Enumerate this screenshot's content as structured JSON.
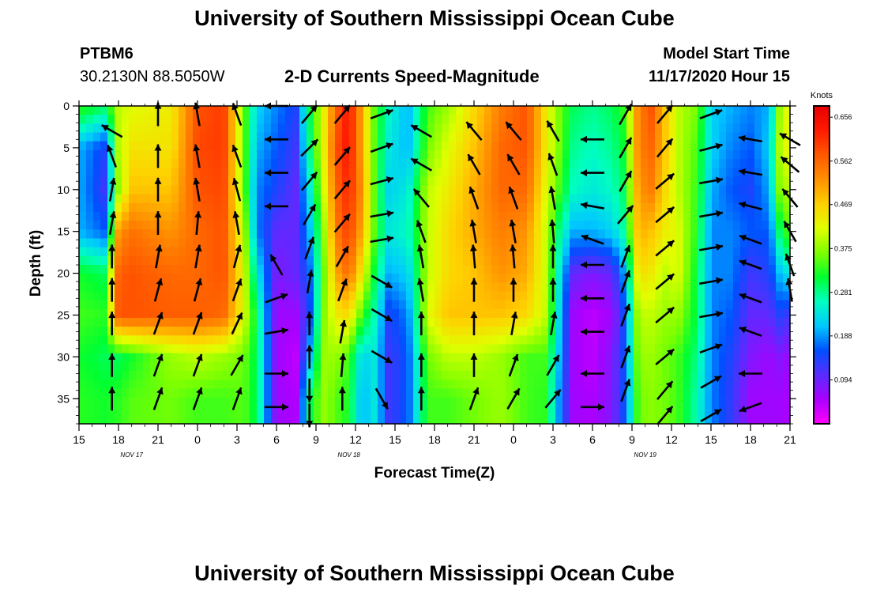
{
  "header": {
    "title": "University of Southern Mississippi Ocean Cube",
    "station_id": "PTBM6",
    "station_coords": "30.2130N 88.5050W",
    "variable_title": "2-D Currents Speed-Magnitude",
    "model_start_label": "Model Start Time",
    "model_start_value": "11/17/2020 Hour 15"
  },
  "footer": {
    "title": "University of Southern Mississippi Ocean Cube"
  },
  "chart_data": {
    "type": "heatmap",
    "title": "2-D Currents Speed-Magnitude",
    "xlabel": "Forecast Time(Z)",
    "ylabel": "Depth (ft)",
    "x_tick_labels": [
      "15",
      "18",
      "21",
      "0",
      "3",
      "6",
      "9",
      "12",
      "15",
      "18",
      "21",
      "0",
      "3",
      "6",
      "9",
      "12",
      "15",
      "18",
      "21"
    ],
    "x_tick_hours": [
      0,
      3,
      6,
      9,
      12,
      15,
      18,
      21,
      24,
      27,
      30,
      33,
      36,
      39,
      42,
      45,
      48,
      51,
      54
    ],
    "x_range_hours": [
      0,
      54
    ],
    "date_labels": [
      {
        "hour": 4,
        "label": "NOV 17"
      },
      {
        "hour": 20.5,
        "label": "NOV 18"
      },
      {
        "hour": 43,
        "label": "NOV 19"
      }
    ],
    "y_ticks": [
      0,
      5,
      10,
      15,
      20,
      25,
      30,
      35
    ],
    "y_range": [
      0,
      38
    ],
    "y_inverted": true,
    "colorbar": {
      "units": "Knots",
      "range": [
        0.0,
        0.68
      ],
      "labels": [
        "0.656",
        "0.562",
        "0.469",
        "0.375",
        "0.281",
        "0.188",
        "0.094"
      ],
      "label_values": [
        0.656,
        0.562,
        0.469,
        0.375,
        0.281,
        0.188,
        0.094
      ],
      "colors": [
        "#ff00ff",
        "#aa00ff",
        "#5a2cff",
        "#0050ff",
        "#00c8ff",
        "#00ffc0",
        "#00ff30",
        "#80ff00",
        "#e0ff00",
        "#ffd000",
        "#ff9000",
        "#ff5800",
        "#ff1a00",
        "#e80000"
      ]
    },
    "grid": false,
    "speed_field": {
      "description": "current speed (knots) sampled at forecast hour (rows) x depth ft (columns)",
      "depths_ft": [
        0,
        5,
        10,
        15,
        20,
        25,
        30,
        35,
        38
      ],
      "profiles": [
        {
          "hour": 0,
          "speeds": [
            0.34,
            0.2,
            0.2,
            0.2,
            0.32,
            0.34,
            0.32,
            0.33,
            0.33
          ]
        },
        {
          "hour": 2,
          "speeds": [
            0.3,
            0.14,
            0.12,
            0.16,
            0.3,
            0.33,
            0.3,
            0.32,
            0.32
          ]
        },
        {
          "hour": 3,
          "speeds": [
            0.4,
            0.4,
            0.38,
            0.52,
            0.57,
            0.58,
            0.3,
            0.33,
            0.33
          ]
        },
        {
          "hour": 4,
          "speeds": [
            0.42,
            0.45,
            0.48,
            0.55,
            0.58,
            0.58,
            0.32,
            0.35,
            0.35
          ]
        },
        {
          "hour": 7,
          "speeds": [
            0.44,
            0.45,
            0.48,
            0.52,
            0.56,
            0.57,
            0.38,
            0.36,
            0.36
          ]
        },
        {
          "hour": 9,
          "speeds": [
            0.58,
            0.59,
            0.58,
            0.56,
            0.56,
            0.57,
            0.4,
            0.34,
            0.34
          ]
        },
        {
          "hour": 11,
          "speeds": [
            0.6,
            0.6,
            0.59,
            0.58,
            0.58,
            0.56,
            0.38,
            0.34,
            0.34
          ]
        },
        {
          "hour": 12.5,
          "speeds": [
            0.36,
            0.36,
            0.36,
            0.4,
            0.42,
            0.42,
            0.36,
            0.35,
            0.35
          ]
        },
        {
          "hour": 13.5,
          "speeds": [
            0.22,
            0.2,
            0.18,
            0.18,
            0.24,
            0.3,
            0.3,
            0.3,
            0.3
          ]
        },
        {
          "hour": 15,
          "speeds": [
            0.18,
            0.16,
            0.14,
            0.1,
            0.08,
            0.06,
            0.06,
            0.06,
            0.06
          ]
        },
        {
          "hour": 16.5,
          "speeds": [
            0.14,
            0.12,
            0.1,
            0.1,
            0.1,
            0.06,
            0.04,
            0.05,
            0.05
          ]
        },
        {
          "hour": 17.5,
          "speeds": [
            0.3,
            0.28,
            0.24,
            0.2,
            0.16,
            0.14,
            0.2,
            0.3,
            0.3
          ]
        },
        {
          "hour": 18.5,
          "speeds": [
            0.42,
            0.42,
            0.4,
            0.36,
            0.34,
            0.36,
            0.38,
            0.38,
            0.38
          ]
        },
        {
          "hour": 19.5,
          "speeds": [
            0.56,
            0.58,
            0.56,
            0.54,
            0.5,
            0.44,
            0.38,
            0.35,
            0.35
          ]
        },
        {
          "hour": 20.5,
          "speeds": [
            0.64,
            0.64,
            0.62,
            0.6,
            0.56,
            0.46,
            0.34,
            0.32,
            0.32
          ]
        },
        {
          "hour": 21.5,
          "speeds": [
            0.5,
            0.5,
            0.52,
            0.5,
            0.44,
            0.34,
            0.22,
            0.2,
            0.2
          ]
        },
        {
          "hour": 22.5,
          "speeds": [
            0.34,
            0.34,
            0.34,
            0.34,
            0.3,
            0.26,
            0.24,
            0.24,
            0.24
          ]
        },
        {
          "hour": 23.5,
          "speeds": [
            0.26,
            0.24,
            0.22,
            0.24,
            0.2,
            0.14,
            0.12,
            0.12,
            0.12
          ]
        },
        {
          "hour": 25,
          "speeds": [
            0.2,
            0.2,
            0.24,
            0.26,
            0.22,
            0.18,
            0.16,
            0.16,
            0.16
          ]
        },
        {
          "hour": 26.5,
          "speeds": [
            0.34,
            0.36,
            0.4,
            0.4,
            0.4,
            0.42,
            0.36,
            0.34,
            0.34
          ]
        },
        {
          "hour": 28,
          "speeds": [
            0.38,
            0.42,
            0.44,
            0.46,
            0.46,
            0.48,
            0.4,
            0.34,
            0.34
          ]
        },
        {
          "hour": 30,
          "speeds": [
            0.46,
            0.48,
            0.5,
            0.5,
            0.48,
            0.48,
            0.4,
            0.36,
            0.36
          ]
        },
        {
          "hour": 32,
          "speeds": [
            0.54,
            0.56,
            0.56,
            0.54,
            0.52,
            0.48,
            0.38,
            0.38,
            0.38
          ]
        },
        {
          "hour": 34,
          "speeds": [
            0.58,
            0.58,
            0.56,
            0.52,
            0.5,
            0.46,
            0.34,
            0.34,
            0.34
          ]
        },
        {
          "hour": 35.5,
          "speeds": [
            0.44,
            0.44,
            0.42,
            0.4,
            0.4,
            0.4,
            0.34,
            0.33,
            0.33
          ]
        },
        {
          "hour": 36.5,
          "speeds": [
            0.36,
            0.36,
            0.34,
            0.28,
            0.24,
            0.22,
            0.2,
            0.18,
            0.18
          ]
        },
        {
          "hour": 37.5,
          "speeds": [
            0.3,
            0.28,
            0.26,
            0.2,
            0.1,
            0.06,
            0.06,
            0.06,
            0.06
          ]
        },
        {
          "hour": 39,
          "speeds": [
            0.28,
            0.26,
            0.24,
            0.2,
            0.08,
            0.04,
            0.04,
            0.05,
            0.05
          ]
        },
        {
          "hour": 40.5,
          "speeds": [
            0.3,
            0.28,
            0.26,
            0.22,
            0.1,
            0.06,
            0.08,
            0.08,
            0.08
          ]
        },
        {
          "hour": 41.5,
          "speeds": [
            0.34,
            0.32,
            0.3,
            0.28,
            0.2,
            0.16,
            0.16,
            0.16,
            0.16
          ]
        },
        {
          "hour": 42.5,
          "speeds": [
            0.54,
            0.54,
            0.52,
            0.5,
            0.46,
            0.4,
            0.38,
            0.36,
            0.36
          ]
        },
        {
          "hour": 43.5,
          "speeds": [
            0.58,
            0.56,
            0.54,
            0.48,
            0.44,
            0.4,
            0.38,
            0.37,
            0.37
          ]
        },
        {
          "hour": 44.5,
          "speeds": [
            0.48,
            0.48,
            0.46,
            0.44,
            0.4,
            0.38,
            0.36,
            0.36,
            0.36
          ]
        },
        {
          "hour": 45.5,
          "speeds": [
            0.4,
            0.4,
            0.4,
            0.42,
            0.42,
            0.38,
            0.34,
            0.34,
            0.34
          ]
        },
        {
          "hour": 47,
          "speeds": [
            0.36,
            0.34,
            0.33,
            0.32,
            0.3,
            0.3,
            0.28,
            0.26,
            0.26
          ]
        },
        {
          "hour": 48,
          "speeds": [
            0.22,
            0.22,
            0.2,
            0.18,
            0.18,
            0.18,
            0.18,
            0.18,
            0.18
          ]
        },
        {
          "hour": 49.5,
          "speeds": [
            0.2,
            0.18,
            0.16,
            0.18,
            0.18,
            0.16,
            0.14,
            0.13,
            0.13
          ]
        },
        {
          "hour": 51,
          "speeds": [
            0.18,
            0.16,
            0.14,
            0.16,
            0.12,
            0.1,
            0.08,
            0.06,
            0.06
          ]
        },
        {
          "hour": 52.5,
          "speeds": [
            0.2,
            0.22,
            0.2,
            0.16,
            0.14,
            0.1,
            0.06,
            0.06,
            0.06
          ]
        },
        {
          "hour": 53,
          "speeds": [
            0.36,
            0.38,
            0.36,
            0.28,
            0.2,
            0.14,
            0.08,
            0.06,
            0.06
          ]
        },
        {
          "hour": 54,
          "speeds": [
            0.44,
            0.44,
            0.4,
            0.36,
            0.24,
            0.12,
            0.06,
            0.05,
            0.05
          ]
        }
      ]
    },
    "vectors": {
      "description": "current direction arrows; dir in degrees clockwise from up (screen), hour/depth in data units",
      "columns": [
        {
          "hour": 2.5,
          "depths": [
            3,
            6,
            10,
            14,
            18,
            22,
            26,
            31,
            35
          ],
          "dirs": [
            300,
            340,
            10,
            10,
            0,
            0,
            0,
            0,
            0
          ]
        },
        {
          "hour": 6,
          "depths": [
            1,
            6,
            10,
            14,
            18,
            22,
            26,
            31,
            35
          ],
          "dirs": [
            0,
            0,
            0,
            0,
            10,
            15,
            20,
            20,
            20
          ]
        },
        {
          "hour": 9,
          "depths": [
            1,
            6,
            10,
            14,
            18,
            22,
            26,
            31,
            35
          ],
          "dirs": [
            350,
            350,
            350,
            5,
            10,
            15,
            20,
            20,
            20
          ]
        },
        {
          "hour": 12,
          "depths": [
            1,
            6,
            10,
            14,
            18,
            22,
            26,
            31,
            35
          ],
          "dirs": [
            340,
            340,
            345,
            350,
            15,
            20,
            25,
            30,
            20
          ]
        },
        {
          "hour": 15,
          "depths": [
            0,
            4,
            8,
            12,
            19,
            23,
            27,
            32,
            36
          ],
          "dirs": [
            270,
            270,
            270,
            270,
            330,
            70,
            80,
            90,
            90
          ]
        },
        {
          "hour": 17.5,
          "depths": [
            1,
            5,
            9,
            13,
            17,
            21,
            26,
            30,
            34,
            37
          ],
          "dirs": [
            40,
            45,
            40,
            30,
            20,
            10,
            0,
            0,
            180,
            180
          ]
        },
        {
          "hour": 20,
          "depths": [
            1,
            6,
            10,
            14,
            18,
            22,
            27,
            31,
            35
          ],
          "dirs": [
            40,
            40,
            40,
            40,
            30,
            20,
            10,
            5,
            0
          ]
        },
        {
          "hour": 23,
          "depths": [
            1,
            5,
            9,
            13,
            16,
            21,
            25,
            30,
            35
          ],
          "dirs": [
            70,
            70,
            75,
            80,
            80,
            120,
            120,
            120,
            150
          ]
        },
        {
          "hour": 26,
          "depths": [
            3,
            7,
            11,
            15,
            18,
            22,
            26,
            31,
            35
          ],
          "dirs": [
            300,
            300,
            320,
            340,
            350,
            350,
            0,
            0,
            0
          ]
        },
        {
          "hour": 30,
          "depths": [
            3,
            7,
            11,
            15,
            18,
            22,
            26,
            31,
            35
          ],
          "dirs": [
            320,
            330,
            340,
            350,
            355,
            0,
            0,
            0,
            20
          ]
        },
        {
          "hour": 33,
          "depths": [
            3,
            7,
            11,
            15,
            18,
            22,
            26,
            31,
            35
          ],
          "dirs": [
            320,
            330,
            340,
            350,
            355,
            0,
            10,
            20,
            30
          ]
        },
        {
          "hour": 36,
          "depths": [
            3,
            7,
            11,
            15,
            18,
            22,
            26,
            31,
            35
          ],
          "dirs": [
            330,
            340,
            350,
            355,
            0,
            0,
            10,
            30,
            40
          ]
        },
        {
          "hour": 39,
          "depths": [
            4,
            8,
            12,
            16,
            19,
            23,
            27,
            32,
            36
          ],
          "dirs": [
            270,
            270,
            280,
            290,
            270,
            270,
            270,
            270,
            90
          ]
        },
        {
          "hour": 41.5,
          "depths": [
            1,
            5,
            9,
            13,
            18,
            21,
            25,
            30,
            34
          ],
          "dirs": [
            30,
            30,
            30,
            40,
            20,
            20,
            20,
            20,
            20
          ]
        },
        {
          "hour": 44.5,
          "depths": [
            1,
            5,
            9,
            13,
            17,
            21,
            25,
            30,
            34,
            37
          ],
          "dirs": [
            40,
            40,
            50,
            50,
            50,
            50,
            50,
            50,
            40,
            40
          ]
        },
        {
          "hour": 48,
          "depths": [
            1,
            5,
            9,
            13,
            17,
            21,
            25,
            29,
            33,
            37
          ],
          "dirs": [
            70,
            75,
            80,
            80,
            80,
            80,
            80,
            70,
            60,
            60
          ]
        },
        {
          "hour": 51,
          "depths": [
            4,
            8,
            12,
            16,
            19,
            23,
            27,
            32,
            36
          ],
          "dirs": [
            280,
            280,
            285,
            290,
            290,
            290,
            290,
            270,
            250
          ]
        },
        {
          "hour": 54,
          "depths": [
            4,
            7,
            11,
            15,
            19,
            22
          ],
          "dirs": [
            300,
            310,
            320,
            330,
            340,
            350
          ]
        }
      ]
    }
  }
}
